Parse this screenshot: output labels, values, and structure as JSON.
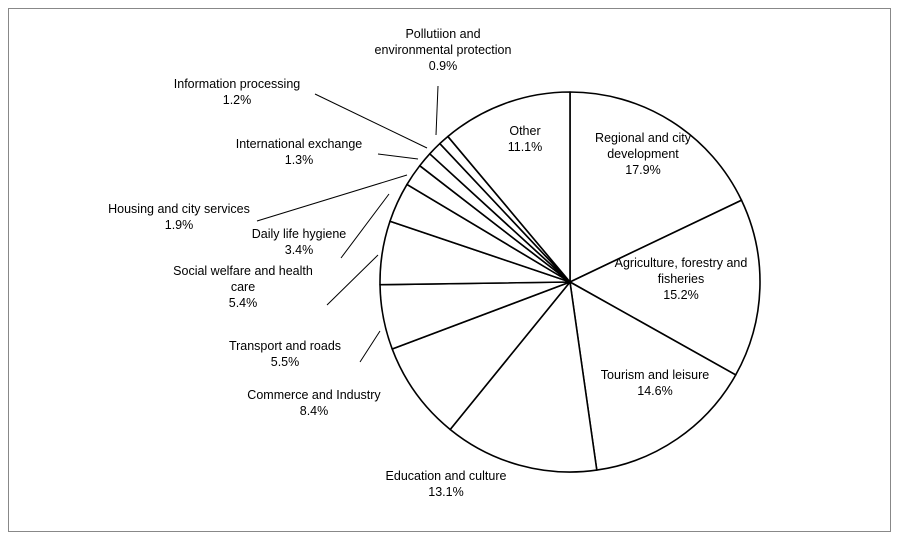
{
  "chart_data": {
    "type": "pie",
    "title": "",
    "start": "top, clockwise",
    "slice_fill": "#ffffff",
    "stroke": "#000000",
    "slices": [
      {
        "label": "Regional and city development",
        "lines": [
          "Regional and city",
          "development"
        ],
        "pct_text": "17.9%",
        "value": 17.9
      },
      {
        "label": "Agriculture, forestry and fisheries",
        "lines": [
          "Agriculture, forestry and",
          "fisheries"
        ],
        "pct_text": "15.2%",
        "value": 15.2
      },
      {
        "label": "Tourism and leisure",
        "lines": [
          "Tourism and leisure"
        ],
        "pct_text": "14.6%",
        "value": 14.6
      },
      {
        "label": "Education and culture",
        "lines": [
          "Education and culture"
        ],
        "pct_text": "13.1%",
        "value": 13.1
      },
      {
        "label": "Commerce and Industry",
        "lines": [
          "Commerce and Industry"
        ],
        "pct_text": "8.4%",
        "value": 8.4
      },
      {
        "label": "Transport and roads",
        "lines": [
          "Transport and roads"
        ],
        "pct_text": "5.5%",
        "value": 5.5
      },
      {
        "label": "Social welfare and health care",
        "lines": [
          "Social welfare and health",
          "care"
        ],
        "pct_text": "5.4%",
        "value": 5.4
      },
      {
        "label": "Daily life hygiene",
        "lines": [
          "Daily life hygiene"
        ],
        "pct_text": "3.4%",
        "value": 3.4
      },
      {
        "label": "Housing and city services",
        "lines": [
          "Housing and city services"
        ],
        "pct_text": "1.9%",
        "value": 1.9
      },
      {
        "label": "International exchange",
        "lines": [
          "International exchange"
        ],
        "pct_text": "1.3%",
        "value": 1.3
      },
      {
        "label": "Information processing",
        "lines": [
          "Information processing"
        ],
        "pct_text": "1.2%",
        "value": 1.2
      },
      {
        "label": "Pollutiion and environmental protection",
        "lines": [
          "Pollutiion and",
          "environmental protection"
        ],
        "pct_text": "0.9%",
        "value": 0.9
      },
      {
        "label": "Other",
        "lines": [
          "Other"
        ],
        "pct_text": "11.1%",
        "value": 11.1
      }
    ]
  }
}
